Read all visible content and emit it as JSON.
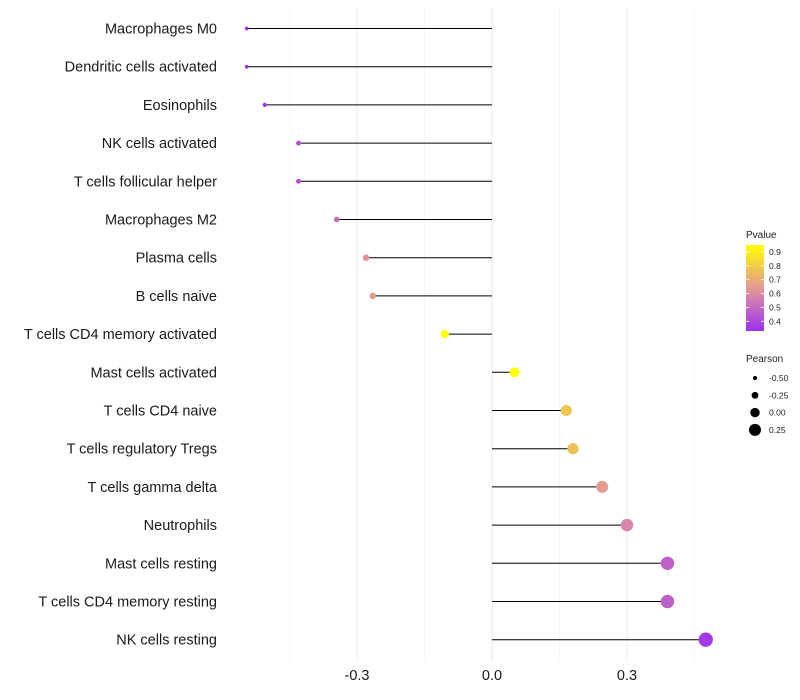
{
  "chart_data": {
    "type": "lollipop",
    "title": "",
    "xlabel": "",
    "ylabel": "",
    "xlim": [
      -0.57,
      0.5
    ],
    "x_ticks": [
      -0.3,
      0.0,
      0.3
    ],
    "x_tick_labels": [
      "-0.3",
      "0.0",
      "0.3"
    ],
    "grid": true,
    "categories": [
      "Macrophages M0",
      "Dendritic cells activated",
      "Eosinophils",
      "NK cells activated",
      "T cells follicular helper",
      "Macrophages M2",
      "Plasma cells",
      "B cells naive",
      "T cells CD4 memory activated",
      "Mast cells activated",
      "T cells CD4 naive",
      "T cells regulatory  Tregs ",
      "T cells gamma delta",
      "Neutrophils",
      "Mast cells resting",
      "T cells CD4 memory resting",
      "NK cells resting"
    ],
    "pearson": [
      -0.545,
      -0.545,
      -0.505,
      -0.43,
      -0.43,
      -0.345,
      -0.28,
      -0.265,
      -0.105,
      0.05,
      0.165,
      0.18,
      0.245,
      0.3,
      0.39,
      0.39,
      0.475
    ],
    "pvalue": [
      0.33,
      0.33,
      0.33,
      0.42,
      0.42,
      0.52,
      0.62,
      0.65,
      0.96,
      0.97,
      0.78,
      0.76,
      0.65,
      0.58,
      0.47,
      0.47,
      0.36
    ],
    "legend_pvalue": {
      "title": "Pvalue",
      "ticks": [
        "0.9",
        "0.8",
        "0.7",
        "0.6",
        "0.5",
        "0.4"
      ],
      "tick_values": [
        0.9,
        0.8,
        0.7,
        0.6,
        0.5,
        0.4
      ],
      "range": [
        0.33,
        0.95
      ],
      "color_low": "#9b30f0",
      "color_mid": "#de8fa0",
      "color_high": "#ffff00"
    },
    "legend_pearson": {
      "title": "Pearson",
      "ticks": [
        "-0.50",
        "-0.25",
        "0.00",
        "0.25"
      ],
      "tick_values": [
        -0.5,
        -0.25,
        0.0,
        0.25
      ]
    },
    "legend_placement": "right"
  }
}
